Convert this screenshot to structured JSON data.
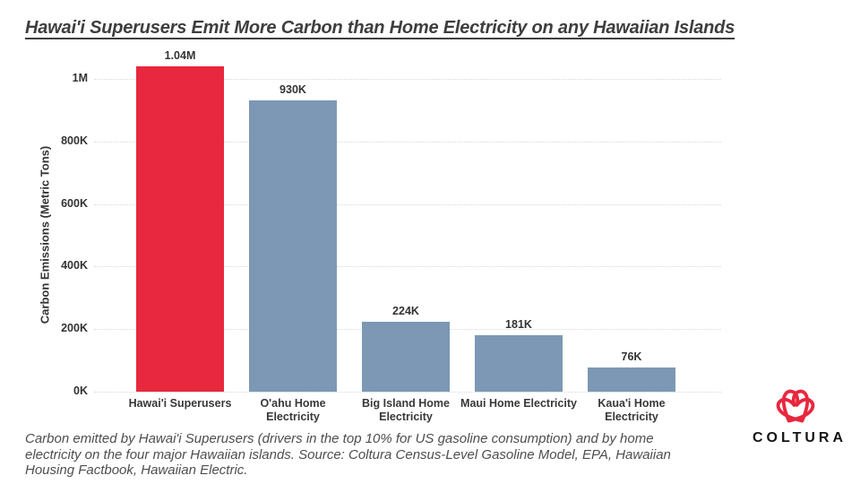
{
  "title": "Hawai'i Superusers Emit More Carbon than Home Electricity on any Hawaiian Islands",
  "chart_data": {
    "type": "bar",
    "title": "Hawai'i Superusers Emit More Carbon than Home Electricity on any Hawaiian Islands",
    "categories": [
      "Hawai'i Superusers",
      "O'ahu Home Electricity",
      "Big Island Home Electricity",
      "Maui Home Electricity",
      "Kaua'i Home Electricity"
    ],
    "values": [
      1040000,
      930000,
      224000,
      181000,
      76000
    ],
    "value_labels": [
      "1.04M",
      "930K",
      "224K",
      "181K",
      "76K"
    ],
    "bar_colors": [
      "#e8283e",
      "#7c98b4",
      "#7c98b4",
      "#7c98b4",
      "#7c98b4"
    ],
    "xlabel": "",
    "ylabel": "Carbon Emissions (Metric Tons)",
    "ylim": [
      0,
      1000000
    ],
    "yticks": [
      {
        "value": 0,
        "label": "0K"
      },
      {
        "value": 200000,
        "label": "200K"
      },
      {
        "value": 400000,
        "label": "400K"
      },
      {
        "value": 600000,
        "label": "600K"
      },
      {
        "value": 800000,
        "label": "800K"
      },
      {
        "value": 1000000,
        "label": "1M"
      }
    ],
    "grid": "horizontal-dotted",
    "legend": "none"
  },
  "caption": {
    "lines": [
      "Carbon emitted by Hawai'i Superusers (drivers in the top 10% for US gasoline consumption) and by home",
      "electricity on the four major Hawaiian islands. Source: Coltura Census-Level Gasoline Model, EPA, Hawaiian",
      "Housing Factbook, Hawaiian Electric."
    ]
  },
  "logo": {
    "text": "COLTURA",
    "icon": "coltura-interlocking-hearts-icon",
    "icon_color": "#e8273d",
    "text_color": "#141414"
  },
  "colors": {
    "accent_red": "#e8283e",
    "bar_blue": "#7c98b4",
    "gridline": "#d9d9d9",
    "title_text": "#3e3e3e",
    "axis_text": "#333333",
    "caption_text": "#4e4e4e",
    "background": "#ffffff"
  }
}
